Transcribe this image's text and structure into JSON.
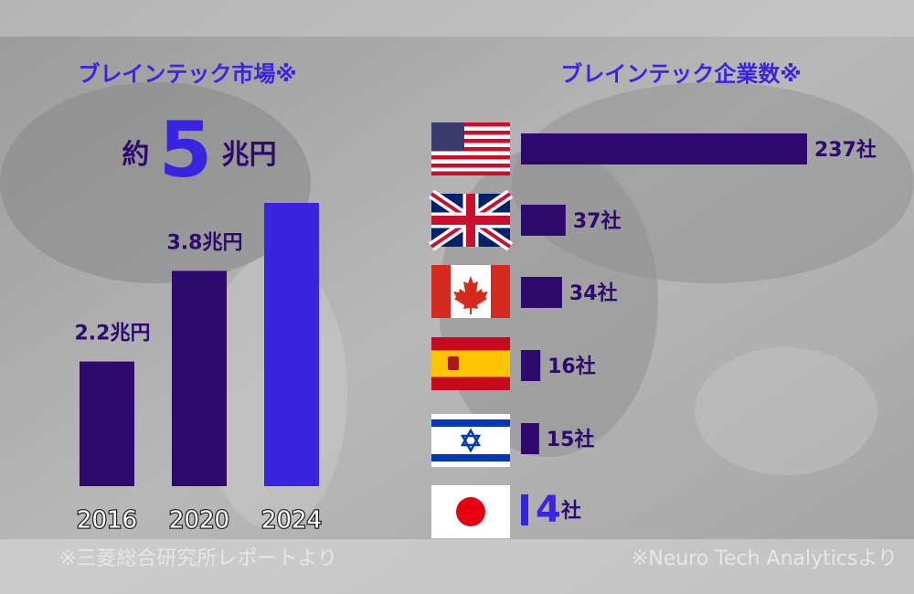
{
  "chart_data": [
    {
      "type": "bar",
      "title": "ブレインテック市場※",
      "categories": [
        "2016",
        "2020",
        "2024"
      ],
      "values": [
        2.2,
        3.8,
        5
      ],
      "value_labels": [
        "2.2兆円",
        "3.8兆円",
        "約 5 兆円"
      ],
      "colors": [
        "#2e0a6e",
        "#2e0a6e",
        "#3a24e0"
      ],
      "source": "※三菱総合研究所レポートより"
    },
    {
      "type": "hbar",
      "title": "ブレインテック企業数※",
      "values": [
        237,
        37,
        34,
        16,
        15,
        4
      ],
      "value_labels": [
        "237社",
        "37社",
        "34社",
        "16社",
        "15社",
        "4社"
      ],
      "colors": [
        "#2e0a6e",
        "#2e0a6e",
        "#2e0a6e",
        "#2e0a6e",
        "#2e0a6e",
        "#3a24e0"
      ],
      "source": "※Neuro Tech Analyticsより"
    }
  ]
}
